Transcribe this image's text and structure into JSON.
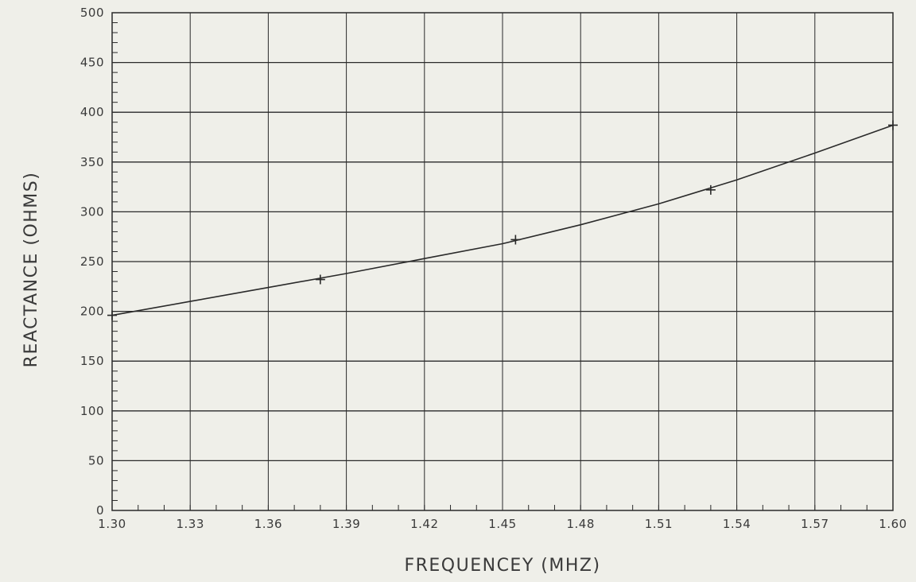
{
  "chart_data": {
    "type": "line",
    "xlabel": "FREQUENCEY (MHZ)",
    "ylabel": "REACTANCE (OHMS)",
    "xlim": [
      1.3,
      1.6
    ],
    "ylim": [
      0,
      500
    ],
    "x_ticks": [
      "1.30",
      "1.33",
      "1.36",
      "1.39",
      "1.42",
      "1.45",
      "1.48",
      "1.51",
      "1.54",
      "1.57",
      "1.60"
    ],
    "y_ticks": [
      "0",
      "50",
      "100",
      "150",
      "200",
      "250",
      "300",
      "350",
      "400",
      "450",
      "500"
    ],
    "grid": true,
    "series": [
      {
        "marker": "plus",
        "points": [
          {
            "x": 1.3,
            "y": 196
          },
          {
            "x": 1.38,
            "y": 232
          },
          {
            "x": 1.455,
            "y": 272
          },
          {
            "x": 1.53,
            "y": 322
          },
          {
            "x": 1.6,
            "y": 387
          }
        ],
        "curve": [
          {
            "x": 1.3,
            "y": 196
          },
          {
            "x": 1.33,
            "y": 210
          },
          {
            "x": 1.36,
            "y": 224
          },
          {
            "x": 1.39,
            "y": 238
          },
          {
            "x": 1.42,
            "y": 253
          },
          {
            "x": 1.45,
            "y": 268
          },
          {
            "x": 1.48,
            "y": 287
          },
          {
            "x": 1.51,
            "y": 308
          },
          {
            "x": 1.54,
            "y": 332
          },
          {
            "x": 1.57,
            "y": 359
          },
          {
            "x": 1.6,
            "y": 387
          }
        ]
      }
    ]
  },
  "style": {
    "line_color": "#2a2a2a",
    "grid_color": "#2a2a2a",
    "background": "#efefe9"
  }
}
